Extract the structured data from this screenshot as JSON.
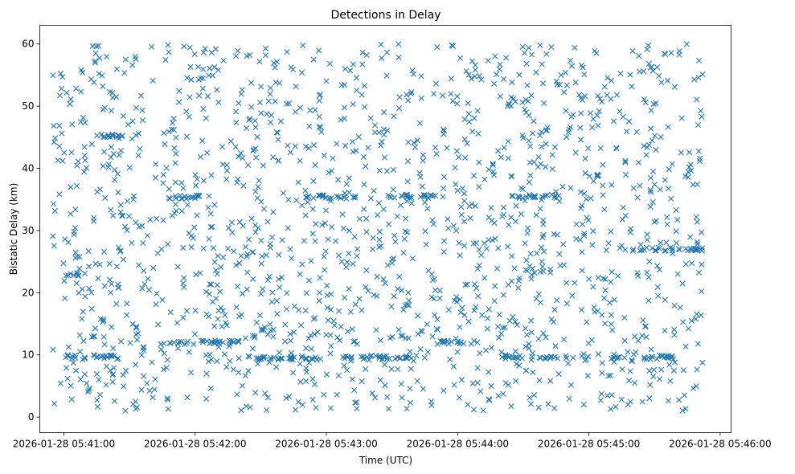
{
  "chart_data": {
    "type": "scatter",
    "title": "Detections in Delay",
    "xlabel": "Time (UTC)",
    "ylabel": "Bistatic Delay (km)",
    "marker": "x",
    "color": "#1f77b4",
    "grid": false,
    "x_axis_type": "datetime",
    "xlim": [
      "2026-01-28 05:40:49",
      "2026-01-28 05:46:05"
    ],
    "ylim": [
      -2.5,
      63
    ],
    "x_ticks": [
      "2026-01-28 05:41:00",
      "2026-01-28 05:42:00",
      "2026-01-28 05:43:00",
      "2026-01-28 05:44:00",
      "2026-01-28 05:45:00",
      "2026-01-28 05:46:00"
    ],
    "y_ticks": [
      "0",
      "10",
      "20",
      "30",
      "40",
      "50",
      "60"
    ],
    "data_time_range": [
      "2026-01-28 05:40:55",
      "2026-01-28 05:45:52"
    ],
    "data_delay_range": [
      1,
      60
    ],
    "structured_tracks": [
      {
        "x": [
          "2026-01-28 05:41:00",
          "2026-01-28 05:41:25"
        ],
        "y": 9.7
      },
      {
        "x": [
          "2026-01-28 05:42:20",
          "2026-01-28 05:43:00"
        ],
        "y": 9.5
      },
      {
        "x": [
          "2026-01-28 05:43:05",
          "2026-01-28 05:43:40"
        ],
        "y": 9.6
      },
      {
        "x": [
          "2026-01-28 05:44:20",
          "2026-01-28 05:44:50"
        ],
        "y": 9.7
      },
      {
        "x": [
          "2026-01-28 05:45:10",
          "2026-01-28 05:45:40"
        ],
        "y": 9.6
      },
      {
        "x": [
          "2026-01-28 05:41:45",
          "2026-01-28 05:42:20"
        ],
        "y": 12.0
      },
      {
        "x": [
          "2026-01-28 05:43:50",
          "2026-01-28 05:44:10"
        ],
        "y": 12.0
      },
      {
        "x": [
          "2026-01-28 05:41:00",
          "2026-01-28 05:41:10"
        ],
        "y": 23.0
      },
      {
        "x": [
          "2026-01-28 05:45:20",
          "2026-01-28 05:45:52"
        ],
        "y": 27.0
      },
      {
        "x": [
          "2026-01-28 05:41:48",
          "2026-01-28 05:42:08"
        ],
        "y": 35.4
      },
      {
        "x": [
          "2026-01-28 05:42:50",
          "2026-01-28 05:43:15"
        ],
        "y": 35.4
      },
      {
        "x": [
          "2026-01-28 05:43:28",
          "2026-01-28 05:43:55"
        ],
        "y": 35.5
      },
      {
        "x": [
          "2026-01-28 05:44:25",
          "2026-01-28 05:44:50"
        ],
        "y": 35.5
      },
      {
        "x": [
          "2026-01-28 05:41:15",
          "2026-01-28 05:41:30"
        ],
        "y": 45.3
      }
    ],
    "point_count_estimate": 1900,
    "clutter_seed": 7
  }
}
